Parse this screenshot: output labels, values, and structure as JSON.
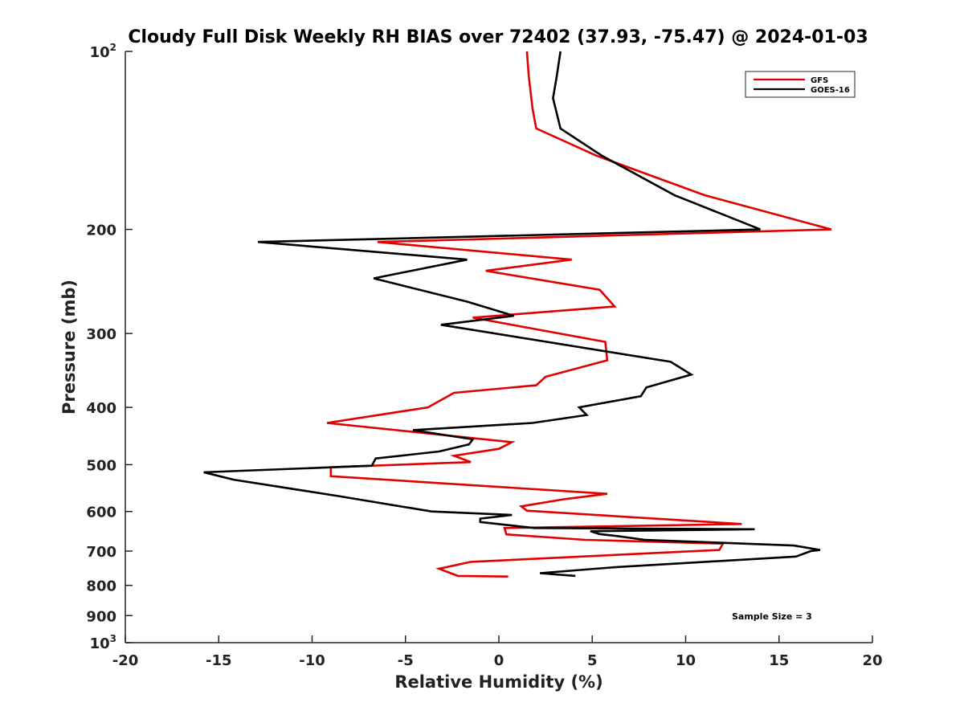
{
  "chart_data": {
    "type": "line",
    "title": "Cloudy Full Disk Weekly RH BIAS over 72402 (37.93, -75.47) @ 2024-01-03",
    "xlabel": "Relative Humidity (%)",
    "ylabel": "Pressure (mb)",
    "xlim": [
      -20,
      20
    ],
    "ylim": [
      100,
      1000
    ],
    "y_scale": "log",
    "y_reversed": true,
    "x_ticks": [
      "-20",
      "-15",
      "-10",
      "-5",
      "0",
      "5",
      "10",
      "15",
      "20"
    ],
    "y_ticks": [
      {
        "value": 100,
        "base": "10",
        "exp": "2"
      },
      {
        "value": 200,
        "label": "200"
      },
      {
        "value": 300,
        "label": "300"
      },
      {
        "value": 400,
        "label": "400"
      },
      {
        "value": 500,
        "label": "500"
      },
      {
        "value": 600,
        "label": "600"
      },
      {
        "value": 700,
        "label": "700"
      },
      {
        "value": 800,
        "label": "800"
      },
      {
        "value": 900,
        "label": "900"
      },
      {
        "value": 1000,
        "base": "10",
        "exp": "3"
      }
    ],
    "legend_position": "top-right",
    "annotation": "Sample Size = 3",
    "series": [
      {
        "name": "GFS",
        "color": "#e00000",
        "points": [
          [
            1.5,
            100
          ],
          [
            1.6,
            110
          ],
          [
            1.8,
            125
          ],
          [
            2.0,
            135
          ],
          [
            5.2,
            150
          ],
          [
            11.0,
            175
          ],
          [
            17.8,
            200
          ],
          [
            -6.5,
            210
          ],
          [
            3.9,
            225
          ],
          [
            -0.7,
            235
          ],
          [
            5.4,
            253
          ],
          [
            6.2,
            270
          ],
          [
            -1.4,
            282
          ],
          [
            5.7,
            310
          ],
          [
            5.8,
            333
          ],
          [
            2.5,
            355
          ],
          [
            2.0,
            367
          ],
          [
            -2.4,
            378
          ],
          [
            -3.8,
            400
          ],
          [
            -9.2,
            425
          ],
          [
            0.7,
            458
          ],
          [
            0.0,
            470
          ],
          [
            -2.4,
            483
          ],
          [
            -1.5,
            495
          ],
          [
            -9.0,
            505
          ],
          [
            -9.0,
            523
          ],
          [
            5.8,
            560
          ],
          [
            3.5,
            572
          ],
          [
            1.2,
            588
          ],
          [
            1.5,
            598
          ],
          [
            13.0,
            630
          ],
          [
            0.3,
            640
          ],
          [
            0.4,
            656
          ],
          [
            4.6,
            670
          ],
          [
            12.0,
            680
          ],
          [
            11.8,
            697
          ],
          [
            -1.5,
            730
          ],
          [
            -3.2,
            750
          ],
          [
            -2.2,
            771
          ],
          [
            0.5,
            773
          ]
        ]
      },
      {
        "name": "GOES-16",
        "color": "#000000",
        "points": [
          [
            3.3,
            100
          ],
          [
            3.1,
            110
          ],
          [
            2.9,
            120
          ],
          [
            3.3,
            135
          ],
          [
            5.5,
            150
          ],
          [
            9.4,
            175
          ],
          [
            14.0,
            200
          ],
          [
            -12.9,
            210
          ],
          [
            -1.7,
            225
          ],
          [
            -6.7,
            242
          ],
          [
            -1.7,
            265
          ],
          [
            0.8,
            280
          ],
          [
            -3.1,
            290
          ],
          [
            9.2,
            335
          ],
          [
            10.3,
            352
          ],
          [
            7.9,
            370
          ],
          [
            7.6,
            383
          ],
          [
            4.3,
            400
          ],
          [
            4.7,
            412
          ],
          [
            1.8,
            425
          ],
          [
            -4.6,
            437
          ],
          [
            -1.4,
            453
          ],
          [
            -1.6,
            462
          ],
          [
            -3.2,
            475
          ],
          [
            -6.6,
            488
          ],
          [
            -6.8,
            502
          ],
          [
            -15.8,
            515
          ],
          [
            -14.2,
            530
          ],
          [
            -8.6,
            565
          ],
          [
            -3.6,
            600
          ],
          [
            0.7,
            608
          ],
          [
            -1.0,
            617
          ],
          [
            -1.0,
            625
          ],
          [
            1.9,
            640
          ],
          [
            13.7,
            643
          ],
          [
            4.9,
            648
          ],
          [
            5.4,
            655
          ],
          [
            6.3,
            660
          ],
          [
            7.8,
            670
          ],
          [
            15.8,
            685
          ],
          [
            17.2,
            697
          ],
          [
            16.7,
            700
          ],
          [
            15.9,
            715
          ],
          [
            6.3,
            745
          ],
          [
            2.2,
            763
          ],
          [
            4.1,
            771
          ]
        ]
      }
    ]
  }
}
